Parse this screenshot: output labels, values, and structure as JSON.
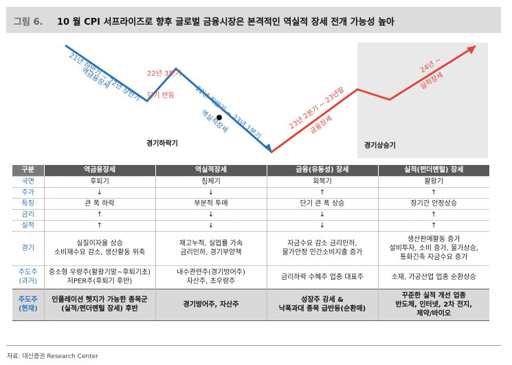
{
  "header": {
    "fig_num": "그림 6.",
    "title": "10 월 CPI 서프라이즈로 향후 글로벌 금융시장은 본격적인 역실적 장세 전개 가능성 높아"
  },
  "cycle_chart": {
    "phase_down_label": "경기하락기",
    "phase_up_label": "경기상승기",
    "labels": {
      "seg1_period": "21년 하반기 ~ 22년 상반기",
      "seg1_market": "역금융장세",
      "seg2_period": "22년 3분기",
      "seg2_market": "단기 반등",
      "seg3_period": "22년 하반기 ~ 23년 1분기",
      "seg3_market": "역실적장세",
      "seg4_period": "23년 2분기 ~ 23년말",
      "seg4_market": "금융장세",
      "seg5_period": "24년 ~",
      "seg5_market": "실적장세"
    },
    "colors": {
      "decline": "#2e75b6",
      "rise": "#e0483b",
      "highlight_box": "#e9e9e9"
    }
  },
  "table": {
    "headers": [
      "구분",
      "역금융장세",
      "역실적장세",
      "금융(유동성) 장세",
      "실적(펀더멘털) 장세"
    ],
    "rows": [
      {
        "label": "국면",
        "cells": [
          "후퇴기",
          "침체기",
          "회복기",
          "활황기"
        ]
      },
      {
        "label": "주가",
        "cells": [
          "↓",
          "↓",
          "↑",
          "↑"
        ]
      },
      {
        "label": "특징",
        "cells": [
          "큰 폭 하락",
          "부분적 투매",
          "단기 큰 폭 상승",
          "장기간 안정상승"
        ]
      },
      {
        "label": "금리",
        "cells": [
          "↑",
          "↓",
          "↓",
          "↑"
        ]
      },
      {
        "label": "실적",
        "cells": [
          "↑",
          "↓",
          "↓",
          "↑"
        ]
      },
      {
        "label": "경기",
        "cells": [
          "실질이자율 상승\n소비재수요 감소, 생산활동 위축",
          "재고누적, 실업률 가속\n금리인하, 경기부양책",
          "자금수요 감소 금리인하,\n물가안정 민간소비지출 증가",
          "생산판매활동 증가\n설비투자, 소비 증가, 물가상승,\n통화긴축 자금수요 증가"
        ]
      },
      {
        "label": "주도주\n(과거)",
        "cells": [
          "중소형 우량주(활황기말~후퇴기초)\n저PER주(후퇴기 후반)",
          "내수관련주(경기방어주)\n자산주, 초우량주",
          "금리하락 수혜주 업종 대표주",
          "소재, 가공산업 업종 순환상승"
        ]
      },
      {
        "label": "주도주\n(현재)",
        "cells": [
          "인플레이션 헷지가 가능한 종목군\n(실적/펀더멘털 장세) 후반",
          "경기방어주, 자산주",
          "성장주 강세 &\n낙폭과대 종목 급반등(순환매)",
          "꾸준한 실적 개선 업종\n반도체, 인터넷, 2차 전지,\n제약/바이오"
        ]
      }
    ]
  },
  "source": "자료: 대신증권 Research Center"
}
